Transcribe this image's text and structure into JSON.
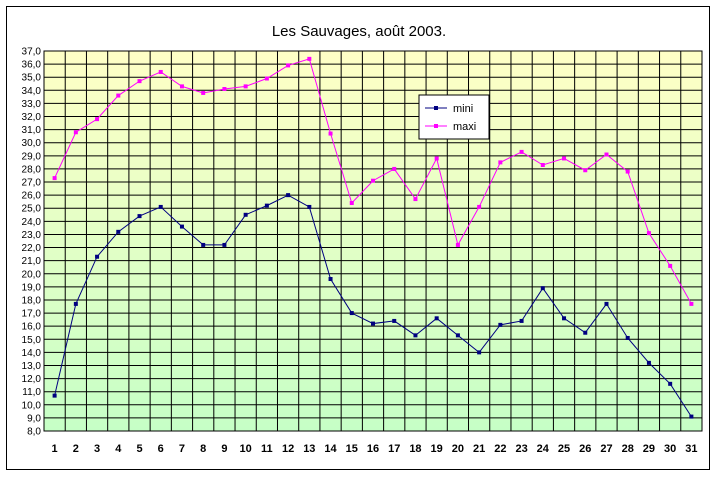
{
  "colors": {
    "plot_top": "#ffffc6",
    "plot_bottom": "#c6ffc6",
    "grid": "#000000",
    "mini": "#000080",
    "maxi": "#ff00ff"
  },
  "chart_data": {
    "type": "line",
    "title": "Les Sauvages, août 2003.",
    "xlabel": "",
    "ylabel": "",
    "ylim": [
      8,
      37
    ],
    "ytick_step": 1,
    "grid": true,
    "legend_position": "top-center",
    "x": [
      1,
      2,
      3,
      4,
      5,
      6,
      7,
      8,
      9,
      10,
      11,
      12,
      13,
      14,
      15,
      16,
      17,
      18,
      19,
      20,
      21,
      22,
      23,
      24,
      25,
      26,
      27,
      28,
      29,
      30,
      31
    ],
    "series": [
      {
        "name": "mini",
        "color": "#000080",
        "values": [
          10.7,
          17.7,
          21.3,
          23.2,
          24.4,
          25.1,
          23.6,
          22.2,
          22.2,
          24.5,
          25.2,
          26.0,
          25.1,
          19.6,
          17.0,
          16.2,
          16.4,
          15.3,
          16.6,
          15.3,
          14.0,
          16.1,
          16.4,
          18.9,
          16.6,
          15.5,
          17.7,
          15.1,
          13.2,
          11.6,
          9.1
        ]
      },
      {
        "name": "maxi",
        "color": "#ff00ff",
        "values": [
          27.3,
          30.8,
          31.8,
          33.6,
          34.7,
          35.4,
          34.3,
          33.8,
          34.1,
          34.3,
          34.9,
          35.9,
          36.4,
          30.7,
          25.4,
          27.1,
          28.0,
          25.7,
          28.8,
          22.2,
          25.1,
          28.5,
          29.3,
          28.3,
          28.8,
          27.9,
          29.1,
          27.8,
          23.1,
          20.6,
          17.7
        ]
      }
    ],
    "ytick_labels": [
      "37,0",
      "36,0",
      "35,0",
      "34,0",
      "33,0",
      "32,0",
      "31,0",
      "30,0",
      "29,0",
      "28,0",
      "27,0",
      "26,0",
      "25,0",
      "24,0",
      "23,0",
      "22,0",
      "21,0",
      "20,0",
      "19,0",
      "18,0",
      "17,0",
      "16,0",
      "15,0",
      "14,0",
      "13,0",
      "12,0",
      "11,0",
      "10,0",
      "9,0",
      "8,0"
    ],
    "xtick_labels": [
      "1",
      "2",
      "3",
      "4",
      "5",
      "6",
      "7",
      "8",
      "9",
      "10",
      "11",
      "12",
      "13",
      "14",
      "15",
      "16",
      "17",
      "18",
      "19",
      "20",
      "21",
      "22",
      "23",
      "24",
      "25",
      "26",
      "27",
      "28",
      "29",
      "30",
      "31"
    ]
  }
}
